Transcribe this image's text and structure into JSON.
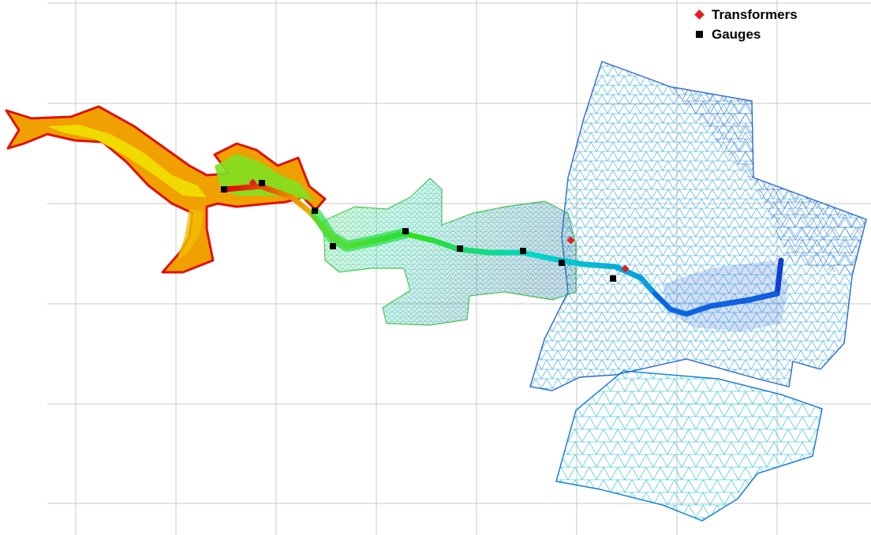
{
  "legend": {
    "transformers_label": "Transformers",
    "gauges_label": "Gauges"
  },
  "colors": {
    "transformer": "#e02020",
    "gauge": "#000000",
    "grid": "#c8c8c8",
    "mesh_ramp": [
      "#e00000",
      "#f0e000",
      "#20e000",
      "#00e0c0",
      "#10a0e0",
      "#1020c0"
    ]
  },
  "icons": {
    "transformer_marker": "red-diamond",
    "gauge_marker": "black-square"
  }
}
